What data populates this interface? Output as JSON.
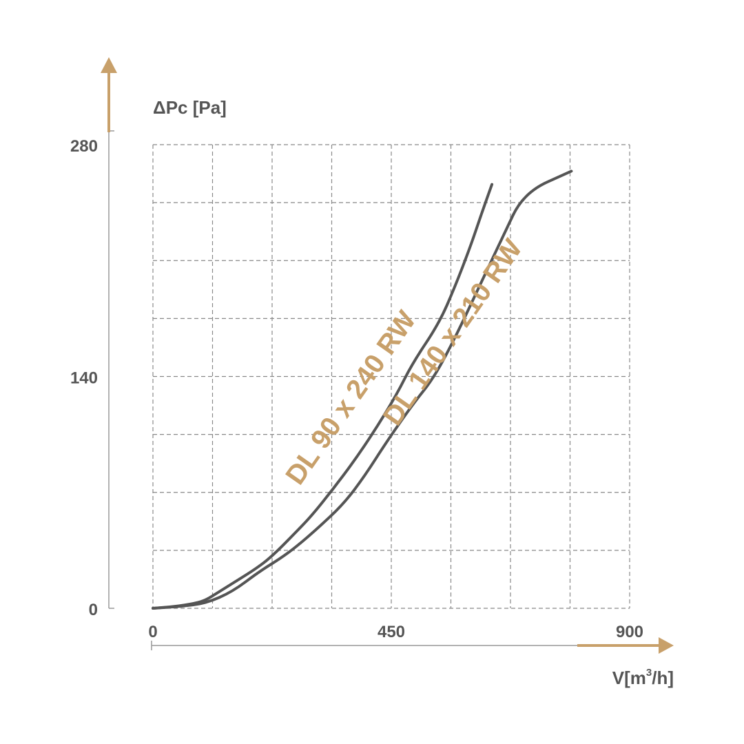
{
  "chart_data": {
    "type": "line",
    "title": "",
    "ylabel": "ΔPc [Pa]",
    "xlabel_main": "V[m",
    "xlabel_sup": "3",
    "xlabel_end": "/h]",
    "xlim": [
      0,
      900
    ],
    "ylim": [
      0,
      280
    ],
    "x_ticks": [
      {
        "value": 0,
        "label": "0"
      },
      {
        "value": 450,
        "label": "450"
      },
      {
        "value": 900,
        "label": "900"
      }
    ],
    "y_ticks": [
      {
        "value": 0,
        "label": "0"
      },
      {
        "value": 140,
        "label": "140"
      },
      {
        "value": 280,
        "label": "280"
      }
    ],
    "grid": true,
    "colors": {
      "curve": "#555555",
      "accent": "#c8a06a",
      "axis": "#999999",
      "grid": "#888888"
    },
    "series": [
      {
        "name": "DL 90 x 240 RW",
        "label_pos": {
          "x": 400,
          "y": 135
        },
        "points": [
          [
            0,
            0
          ],
          [
            40,
            1
          ],
          [
            80,
            3
          ],
          [
            100,
            5
          ],
          [
            120,
            9
          ],
          [
            150,
            15
          ],
          [
            200,
            25
          ],
          [
            230,
            33
          ],
          [
            270,
            46
          ],
          [
            300,
            56
          ],
          [
            340,
            72
          ],
          [
            380,
            89
          ],
          [
            420,
            108
          ],
          [
            460,
            129
          ],
          [
            490,
            148
          ],
          [
            540,
            172
          ],
          [
            570,
            194
          ],
          [
            600,
            219
          ],
          [
            620,
            238
          ],
          [
            640,
            256
          ]
        ]
      },
      {
        "name": "DL 140 x 210 RW",
        "label_pos": {
          "x": 560,
          "y": 140
        },
        "points": [
          [
            0,
            0
          ],
          [
            50,
            1
          ],
          [
            100,
            3
          ],
          [
            150,
            10
          ],
          [
            200,
            22
          ],
          [
            240,
            30
          ],
          [
            270,
            37
          ],
          [
            310,
            48
          ],
          [
            360,
            63
          ],
          [
            400,
            80
          ],
          [
            440,
            100
          ],
          [
            490,
            123
          ],
          [
            530,
            139
          ],
          [
            570,
            163
          ],
          [
            620,
            197
          ],
          [
            660,
            224
          ],
          [
            700,
            251
          ],
          [
            790,
            264
          ]
        ]
      }
    ]
  }
}
